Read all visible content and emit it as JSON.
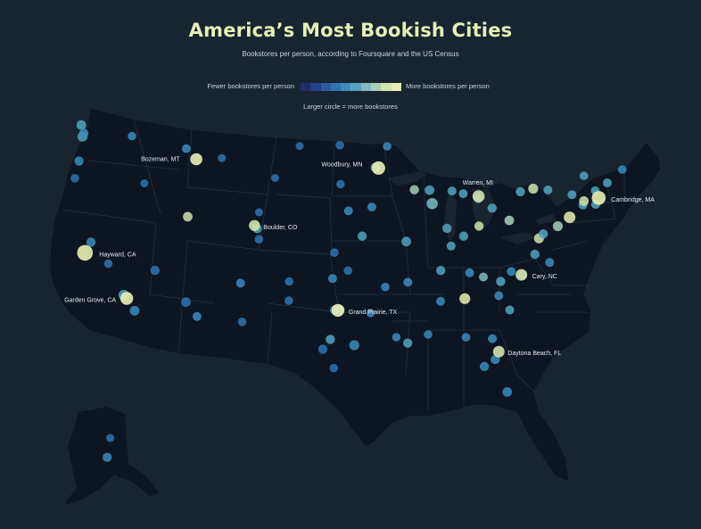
{
  "title": "America’s Most Bookish Cities",
  "subtitle": "Bookstores per person, according to Foursquare and the US Census",
  "legend": {
    "low_label": "Fewer bookstores per person",
    "high_label": "More bookstores per person",
    "size_note": "Larger circle = more bookstores",
    "colors": [
      "#1d2a6b",
      "#23408a",
      "#2a5aa4",
      "#2f74b3",
      "#3c8cbd",
      "#52a3c0",
      "#7ebcbf",
      "#a9cfb9",
      "#d2e2ad",
      "#ebefb4"
    ]
  },
  "colors": {
    "background": "#182530",
    "land": "#0c1521",
    "borders": "#243444"
  },
  "labeled_cities": [
    {
      "name": "Bozeman, MT",
      "lon": -111.04,
      "lat": 45.68,
      "level": 0.95,
      "size": 1.2
    },
    {
      "name": "Woodbury, MN",
      "lon": -92.96,
      "lat": 44.92,
      "level": 0.95,
      "size": 1.4
    },
    {
      "name": "Warren, MI",
      "lon": -83.03,
      "lat": 42.51,
      "level": 0.9,
      "size": 1.2
    },
    {
      "name": "Cambridge, MA",
      "lon": -71.11,
      "lat": 42.37,
      "level": 1.0,
      "size": 1.5
    },
    {
      "name": "Hayward, CA",
      "lon": -122.08,
      "lat": 37.67,
      "level": 0.95,
      "size": 1.8
    },
    {
      "name": "Boulder, CO",
      "lon": -105.27,
      "lat": 40.01,
      "level": 0.9,
      "size": 1.0
    },
    {
      "name": "Cary, NC",
      "lon": -78.78,
      "lat": 35.79,
      "level": 0.9,
      "size": 1.1
    },
    {
      "name": "Garden Grove, CA",
      "lon": -117.94,
      "lat": 33.77,
      "level": 0.95,
      "size": 1.3
    },
    {
      "name": "Grand Prairie, TX",
      "lon": -96.99,
      "lat": 32.75,
      "level": 0.95,
      "size": 1.3
    },
    {
      "name": "Daytona Beach, FL",
      "lon": -81.02,
      "lat": 29.21,
      "level": 0.9,
      "size": 1.1
    }
  ],
  "cities": [
    {
      "lon": -122.33,
      "lat": 47.61,
      "level": 0.5,
      "size": 1.2
    },
    {
      "lon": -122.2,
      "lat": 47.9,
      "level": 0.45,
      "size": 1.0
    },
    {
      "lon": -122.45,
      "lat": 48.6,
      "level": 0.5,
      "size": 1.1
    },
    {
      "lon": -117.42,
      "lat": 47.66,
      "level": 0.4,
      "size": 0.8
    },
    {
      "lon": -122.68,
      "lat": 45.52,
      "level": 0.45,
      "size": 1.0
    },
    {
      "lon": -123.09,
      "lat": 44.05,
      "level": 0.35,
      "size": 0.8
    },
    {
      "lon": -116.2,
      "lat": 43.62,
      "level": 0.35,
      "size": 0.7
    },
    {
      "lon": -111.89,
      "lat": 40.76,
      "level": 0.9,
      "size": 1.1
    },
    {
      "lon": -112.03,
      "lat": 46.59,
      "level": 0.45,
      "size": 0.9
    },
    {
      "lon": -108.5,
      "lat": 45.78,
      "level": 0.3,
      "size": 0.7
    },
    {
      "lon": -104.82,
      "lat": 41.14,
      "level": 0.35,
      "size": 0.7
    },
    {
      "lon": -104.99,
      "lat": 39.74,
      "level": 0.5,
      "size": 1.0
    },
    {
      "lon": -104.82,
      "lat": 38.83,
      "level": 0.35,
      "size": 0.8
    },
    {
      "lon": -106.65,
      "lat": 35.08,
      "level": 0.4,
      "size": 0.9
    },
    {
      "lon": -115.14,
      "lat": 36.17,
      "level": 0.3,
      "size": 1.0
    },
    {
      "lon": -112.07,
      "lat": 33.45,
      "level": 0.35,
      "size": 1.1
    },
    {
      "lon": -110.97,
      "lat": 32.22,
      "level": 0.45,
      "size": 0.9
    },
    {
      "lon": -119.77,
      "lat": 36.74,
      "level": 0.3,
      "size": 0.8
    },
    {
      "lon": -121.49,
      "lat": 38.58,
      "level": 0.45,
      "size": 1.0
    },
    {
      "lon": -118.24,
      "lat": 34.05,
      "level": 0.5,
      "size": 1.3
    },
    {
      "lon": -117.16,
      "lat": 32.72,
      "level": 0.45,
      "size": 1.1
    },
    {
      "lon": -106.49,
      "lat": 31.76,
      "level": 0.3,
      "size": 0.8
    },
    {
      "lon": -98.49,
      "lat": 29.42,
      "level": 0.35,
      "size": 1.0
    },
    {
      "lon": -97.74,
      "lat": 30.27,
      "level": 0.5,
      "size": 1.0
    },
    {
      "lon": -95.37,
      "lat": 29.76,
      "level": 0.4,
      "size": 1.2
    },
    {
      "lon": -97.52,
      "lat": 35.47,
      "level": 0.4,
      "size": 0.9
    },
    {
      "lon": -95.99,
      "lat": 36.15,
      "level": 0.35,
      "size": 0.8
    },
    {
      "lon": -97.34,
      "lat": 37.69,
      "level": 0.35,
      "size": 0.8
    },
    {
      "lon": -94.58,
      "lat": 39.1,
      "level": 0.5,
      "size": 1.0
    },
    {
      "lon": -95.94,
      "lat": 41.26,
      "level": 0.45,
      "size": 0.9
    },
    {
      "lon": -93.62,
      "lat": 41.59,
      "level": 0.45,
      "size": 0.9
    },
    {
      "lon": -90.2,
      "lat": 38.63,
      "level": 0.55,
      "size": 1.1
    },
    {
      "lon": -87.63,
      "lat": 41.88,
      "level": 0.7,
      "size": 1.5
    },
    {
      "lon": -87.9,
      "lat": 43.04,
      "level": 0.6,
      "size": 1.1
    },
    {
      "lon": -89.4,
      "lat": 43.07,
      "level": 0.75,
      "size": 1.0
    },
    {
      "lon": -86.16,
      "lat": 39.77,
      "level": 0.55,
      "size": 1.0
    },
    {
      "lon": -84.51,
      "lat": 39.1,
      "level": 0.6,
      "size": 1.0
    },
    {
      "lon": -82.99,
      "lat": 39.96,
      "level": 0.85,
      "size": 1.0
    },
    {
      "lon": -81.69,
      "lat": 41.5,
      "level": 0.6,
      "size": 1.0
    },
    {
      "lon": -79.99,
      "lat": 40.44,
      "level": 0.8,
      "size": 1.1
    },
    {
      "lon": -85.76,
      "lat": 38.25,
      "level": 0.5,
      "size": 0.9
    },
    {
      "lon": -86.78,
      "lat": 36.16,
      "level": 0.55,
      "size": 1.0
    },
    {
      "lon": -90.05,
      "lat": 35.15,
      "level": 0.45,
      "size": 0.9
    },
    {
      "lon": -84.39,
      "lat": 33.75,
      "level": 1.0,
      "size": 1.4
    },
    {
      "lon": -86.8,
      "lat": 33.52,
      "level": 0.45,
      "size": 0.9
    },
    {
      "lon": -90.07,
      "lat": 29.95,
      "level": 0.5,
      "size": 1.0
    },
    {
      "lon": -91.19,
      "lat": 30.45,
      "level": 0.4,
      "size": 0.8
    },
    {
      "lon": -92.29,
      "lat": 34.75,
      "level": 0.4,
      "size": 0.8
    },
    {
      "lon": -81.66,
      "lat": 30.33,
      "level": 0.45,
      "size": 0.9
    },
    {
      "lon": -81.38,
      "lat": 28.54,
      "level": 0.45,
      "size": 1.0
    },
    {
      "lon": -82.46,
      "lat": 27.95,
      "level": 0.45,
      "size": 1.0
    },
    {
      "lon": -80.19,
      "lat": 25.76,
      "level": 0.45,
      "size": 1.1
    },
    {
      "lon": -80.84,
      "lat": 35.23,
      "level": 0.5,
      "size": 1.0
    },
    {
      "lon": -79.94,
      "lat": 32.78,
      "level": 0.5,
      "size": 0.9
    },
    {
      "lon": -77.44,
      "lat": 37.54,
      "level": 0.55,
      "size": 1.0
    },
    {
      "lon": -77.04,
      "lat": 38.91,
      "level": 0.85,
      "size": 1.2
    },
    {
      "lon": -76.61,
      "lat": 39.29,
      "level": 0.6,
      "size": 1.0
    },
    {
      "lon": -75.17,
      "lat": 39.95,
      "level": 0.8,
      "size": 1.2
    },
    {
      "lon": -74.0,
      "lat": 40.71,
      "level": 0.95,
      "size": 1.6
    },
    {
      "lon": -73.76,
      "lat": 42.65,
      "level": 0.6,
      "size": 0.9
    },
    {
      "lon": -78.88,
      "lat": 42.89,
      "level": 0.55,
      "size": 1.0
    },
    {
      "lon": -77.61,
      "lat": 43.16,
      "level": 0.9,
      "size": 1.2
    },
    {
      "lon": -76.15,
      "lat": 43.05,
      "level": 0.55,
      "size": 0.9
    },
    {
      "lon": -72.68,
      "lat": 41.76,
      "level": 0.6,
      "size": 0.9
    },
    {
      "lon": -71.41,
      "lat": 41.82,
      "level": 0.6,
      "size": 0.9
    },
    {
      "lon": -72.58,
      "lat": 42.1,
      "level": 0.9,
      "size": 1.1
    },
    {
      "lon": -72.58,
      "lat": 44.26,
      "level": 0.5,
      "size": 0.8
    },
    {
      "lon": -70.26,
      "lat": 43.66,
      "level": 0.55,
      "size": 0.9
    },
    {
      "lon": -68.77,
      "lat": 44.8,
      "level": 0.45,
      "size": 0.8
    },
    {
      "lon": -71.46,
      "lat": 42.99,
      "level": 0.5,
      "size": 0.8
    },
    {
      "lon": -83.05,
      "lat": 42.33,
      "level": 0.5,
      "size": 1.0
    },
    {
      "lon": -85.67,
      "lat": 42.96,
      "level": 0.55,
      "size": 0.9
    },
    {
      "lon": -84.55,
      "lat": 42.73,
      "level": 0.55,
      "size": 0.9
    },
    {
      "lon": -93.27,
      "lat": 44.98,
      "level": 0.6,
      "size": 1.1
    },
    {
      "lon": -92.1,
      "lat": 46.79,
      "level": 0.4,
      "size": 0.8
    },
    {
      "lon": -96.79,
      "lat": 46.88,
      "level": 0.35,
      "size": 0.8
    },
    {
      "lon": -96.73,
      "lat": 43.55,
      "level": 0.35,
      "size": 0.8
    },
    {
      "lon": -100.78,
      "lat": 46.81,
      "level": 0.3,
      "size": 0.7
    },
    {
      "lon": -103.23,
      "lat": 44.08,
      "level": 0.3,
      "size": 0.7
    },
    {
      "lon": -101.83,
      "lat": 35.22,
      "level": 0.3,
      "size": 0.8
    },
    {
      "lon": -101.85,
      "lat": 33.58,
      "level": 0.3,
      "size": 0.8
    },
    {
      "lon": -96.8,
      "lat": 32.78,
      "level": 0.45,
      "size": 1.1
    },
    {
      "lon": -97.33,
      "lat": 32.76,
      "level": 0.4,
      "size": 1.0
    },
    {
      "lon": -97.4,
      "lat": 27.8,
      "level": 0.35,
      "size": 0.8
    },
    {
      "lon": -93.75,
      "lat": 32.52,
      "level": 0.4,
      "size": 0.8
    },
    {
      "lon": -88.04,
      "lat": 30.69,
      "level": 0.4,
      "size": 0.8
    },
    {
      "lon": -84.28,
      "lat": 30.44,
      "level": 0.4,
      "size": 0.8
    },
    {
      "lon": -83.92,
      "lat": 35.96,
      "level": 0.45,
      "size": 0.9
    },
    {
      "lon": -82.55,
      "lat": 35.6,
      "level": 0.65,
      "size": 0.9
    },
    {
      "lon": -81.03,
      "lat": 34.0,
      "level": 0.45,
      "size": 0.9
    },
    {
      "lon": -75.98,
      "lat": 36.85,
      "level": 0.45,
      "size": 0.9
    },
    {
      "lon": -78.64,
      "lat": 35.78,
      "level": 0.5,
      "size": 0.9
    },
    {
      "lon": -79.79,
      "lat": 36.07,
      "level": 0.45,
      "size": 0.9
    },
    {
      "lon": -149.9,
      "lat": 61.22,
      "level": 0.45,
      "size": 1.0
    },
    {
      "lon": -147.72,
      "lat": 64.84,
      "level": 0.3,
      "size": 0.7
    }
  ]
}
